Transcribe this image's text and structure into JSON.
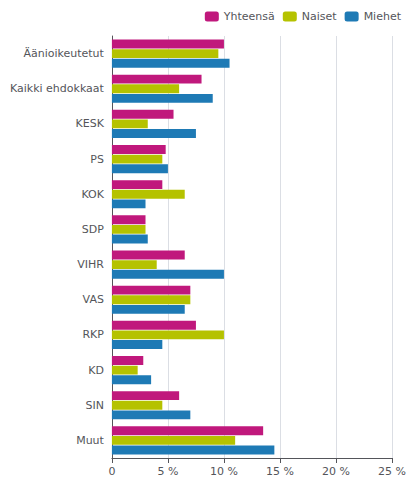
{
  "chart_data": {
    "type": "bar",
    "orientation": "horizontal",
    "categories": [
      "Äänioikeutetut",
      "Kaikki ehdokkaat",
      "KESK",
      "PS",
      "KOK",
      "SDP",
      "VIHR",
      "VAS",
      "RKP",
      "KD",
      "SIN",
      "Muut"
    ],
    "series": [
      {
        "name": "Yhteensä",
        "color": "#c0187c",
        "values": [
          10.0,
          8.0,
          5.5,
          4.8,
          4.5,
          3.0,
          6.5,
          7.0,
          7.5,
          2.8,
          6.0,
          13.5
        ]
      },
      {
        "name": "Naiset",
        "color": "#b5c200",
        "values": [
          9.5,
          6.0,
          3.2,
          4.5,
          6.5,
          3.0,
          4.0,
          7.0,
          10.0,
          2.3,
          4.5,
          11.0
        ]
      },
      {
        "name": "Miehet",
        "color": "#1e7ab5",
        "values": [
          10.5,
          9.0,
          7.5,
          5.0,
          3.0,
          3.2,
          10.0,
          6.5,
          4.5,
          3.5,
          7.0,
          14.5
        ]
      }
    ],
    "xlim": [
      0,
      25
    ],
    "xticks": [
      0,
      {
        "value": 5,
        "label": "5 %"
      },
      {
        "value": 10,
        "label": "10 %"
      },
      {
        "value": 15,
        "label": "15 %"
      },
      {
        "value": 20,
        "label": "20 %"
      },
      {
        "value": 25,
        "label": "25 %"
      }
    ],
    "grid": true,
    "legend": "upper right"
  }
}
